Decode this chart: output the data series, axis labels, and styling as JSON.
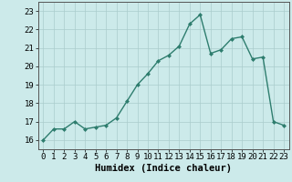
{
  "x": [
    0,
    1,
    2,
    3,
    4,
    5,
    6,
    7,
    8,
    9,
    10,
    11,
    12,
    13,
    14,
    15,
    16,
    17,
    18,
    19,
    20,
    21,
    22,
    23
  ],
  "y": [
    16.0,
    16.6,
    16.6,
    17.0,
    16.6,
    16.7,
    16.8,
    17.2,
    18.1,
    19.0,
    19.6,
    20.3,
    20.6,
    21.1,
    22.3,
    22.8,
    20.7,
    20.9,
    21.5,
    21.6,
    20.4,
    20.5,
    17.0,
    16.8
  ],
  "line_color": "#2e7d6e",
  "marker": "D",
  "marker_size": 2.0,
  "line_width": 1.0,
  "bg_color": "#cceaea",
  "grid_color": "#aacccc",
  "xlabel": "Humidex (Indice chaleur)",
  "xlabel_fontsize": 7.5,
  "tick_fontsize": 6.5,
  "ylim": [
    15.5,
    23.5
  ],
  "xlim": [
    -0.5,
    23.5
  ],
  "yticks": [
    16,
    17,
    18,
    19,
    20,
    21,
    22,
    23
  ],
  "xticks": [
    0,
    1,
    2,
    3,
    4,
    5,
    6,
    7,
    8,
    9,
    10,
    11,
    12,
    13,
    14,
    15,
    16,
    17,
    18,
    19,
    20,
    21,
    22,
    23
  ]
}
